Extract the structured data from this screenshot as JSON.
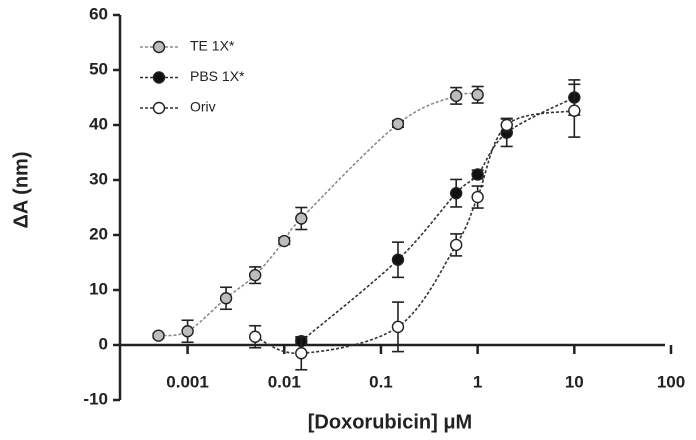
{
  "chart_data": {
    "type": "scatter",
    "xlabel": "[Doxorubicin] μM",
    "ylabel": "ΔA (nm)",
    "xscale": "log",
    "xlim": [
      0.0002,
      100
    ],
    "ylim": [
      -10,
      60
    ],
    "xticks": [
      0.001,
      0.01,
      0.1,
      1,
      10,
      100
    ],
    "yticks": [
      -10,
      0,
      10,
      20,
      30,
      40,
      50,
      60
    ],
    "legend": "upper left",
    "series": [
      {
        "name": "TE 1X*",
        "color": "#bdbdbd",
        "line": "#8a8a8a",
        "x": [
          0.0005,
          0.001,
          0.0025,
          0.005,
          0.01,
          0.015,
          0.15,
          0.6,
          1
        ],
        "values": [
          1.7,
          2.5,
          8.5,
          12.7,
          18.9,
          23,
          40.2,
          45.3,
          45.5
        ],
        "errors": [
          0.4,
          2,
          2,
          1.5,
          0.6,
          2,
          0.6,
          1.5,
          1.5
        ]
      },
      {
        "name": "PBS 1X*",
        "color": "#111111",
        "line": "#333333",
        "x": [
          0.015,
          0.15,
          0.6,
          1,
          2,
          10
        ],
        "values": [
          0.7,
          15.5,
          27.6,
          31,
          38.6,
          45
        ],
        "errors": [
          0.5,
          3.2,
          2.5,
          0.8,
          2.5,
          3.2
        ]
      },
      {
        "name": "Oriv",
        "color": "#ffffff",
        "line": "#333333",
        "x": [
          0.005,
          0.015,
          0.15,
          0.6,
          1,
          2,
          10
        ],
        "values": [
          1.5,
          -1.5,
          3.3,
          18.2,
          26.9,
          40,
          42.6
        ],
        "errors": [
          2,
          3,
          4.5,
          2,
          2,
          1.2,
          4.8
        ]
      }
    ]
  }
}
